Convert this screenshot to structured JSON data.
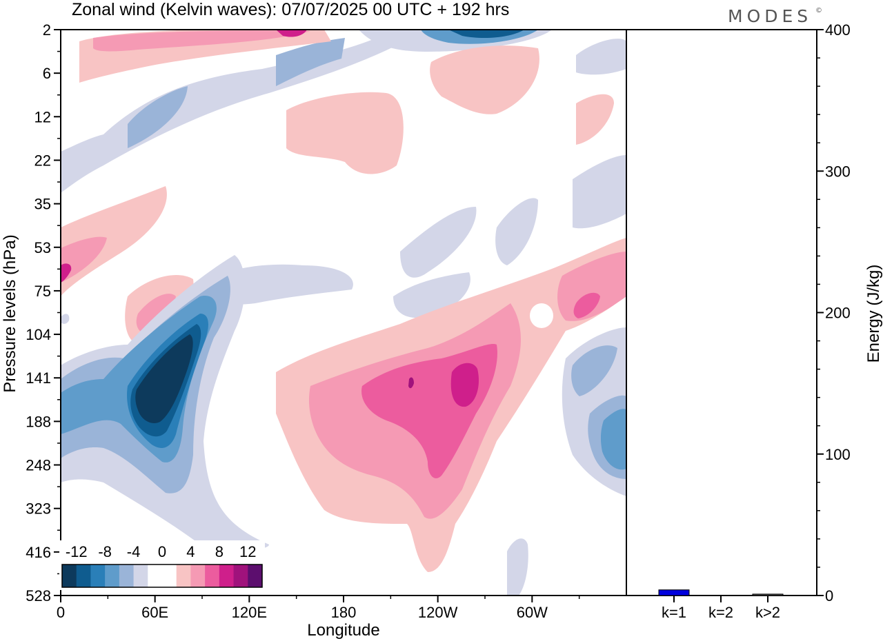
{
  "title": "Zonal wind (Kelvin waves):  07/07/2025  00 UTC  + 192 hrs",
  "brand": "MODES",
  "brand_mark": "©",
  "chart_data": [
    {
      "type": "heatmap",
      "title": "Zonal wind (Kelvin waves):  07/07/2025  00 UTC  + 192 hrs",
      "xlabel": "Longitude",
      "ylabel": "Pressure levels (hPa)",
      "x_ticks": [
        "0",
        "60E",
        "120E",
        "180",
        "120W",
        "60W"
      ],
      "y_ticks": [
        "2",
        "6",
        "12",
        "22",
        "35",
        "53",
        "75",
        "104",
        "141",
        "188",
        "248",
        "323",
        "416",
        "528"
      ],
      "colorbar": {
        "labels": [
          "-12",
          "-8",
          "-4",
          "0",
          "4",
          "8",
          "12"
        ],
        "levels": [
          -14,
          -12,
          -10,
          -8,
          -6,
          -4,
          -2,
          0,
          2,
          4,
          6,
          8,
          10,
          12,
          14
        ],
        "colors": [
          "#0d3a5c",
          "#0f5c8f",
          "#2a7fb8",
          "#5f9ccb",
          "#9ab4d8",
          "#d3d6e8",
          "#ffffff",
          "#ffffff",
          "#f8c4c4",
          "#f59ab4",
          "#ec5c9e",
          "#cf1f8b",
          "#a0127c",
          "#5c0e6e"
        ]
      },
      "features": [
        {
          "sign": "negative",
          "region": "60E-90E, 104-248 hPa",
          "peak": -14
        },
        {
          "sign": "positive",
          "region": "180-60W, 75-416 hPa",
          "peak": 10
        },
        {
          "sign": "negative",
          "region": "0-30E, 141-248 hPa",
          "peak": -6
        },
        {
          "sign": "negative",
          "region": "130W-160W, 2 hPa",
          "peak": -14
        },
        {
          "sign": "positive",
          "region": "30W-0, 53-104 hPa",
          "peak": 8
        },
        {
          "sign": "negative",
          "region": "20W-0, 141-248 hPa",
          "peak": -6
        }
      ]
    },
    {
      "type": "bar",
      "ylabel": "Energy (J/kg)",
      "ylim": [
        0,
        400
      ],
      "y_ticks": [
        "0",
        "100",
        "200",
        "300",
        "400"
      ],
      "categories": [
        "k=1",
        "k=2",
        "k>2"
      ],
      "values": [
        4,
        0,
        1
      ],
      "colors": [
        "#0000dd",
        "#0000dd",
        "#555555"
      ]
    }
  ]
}
